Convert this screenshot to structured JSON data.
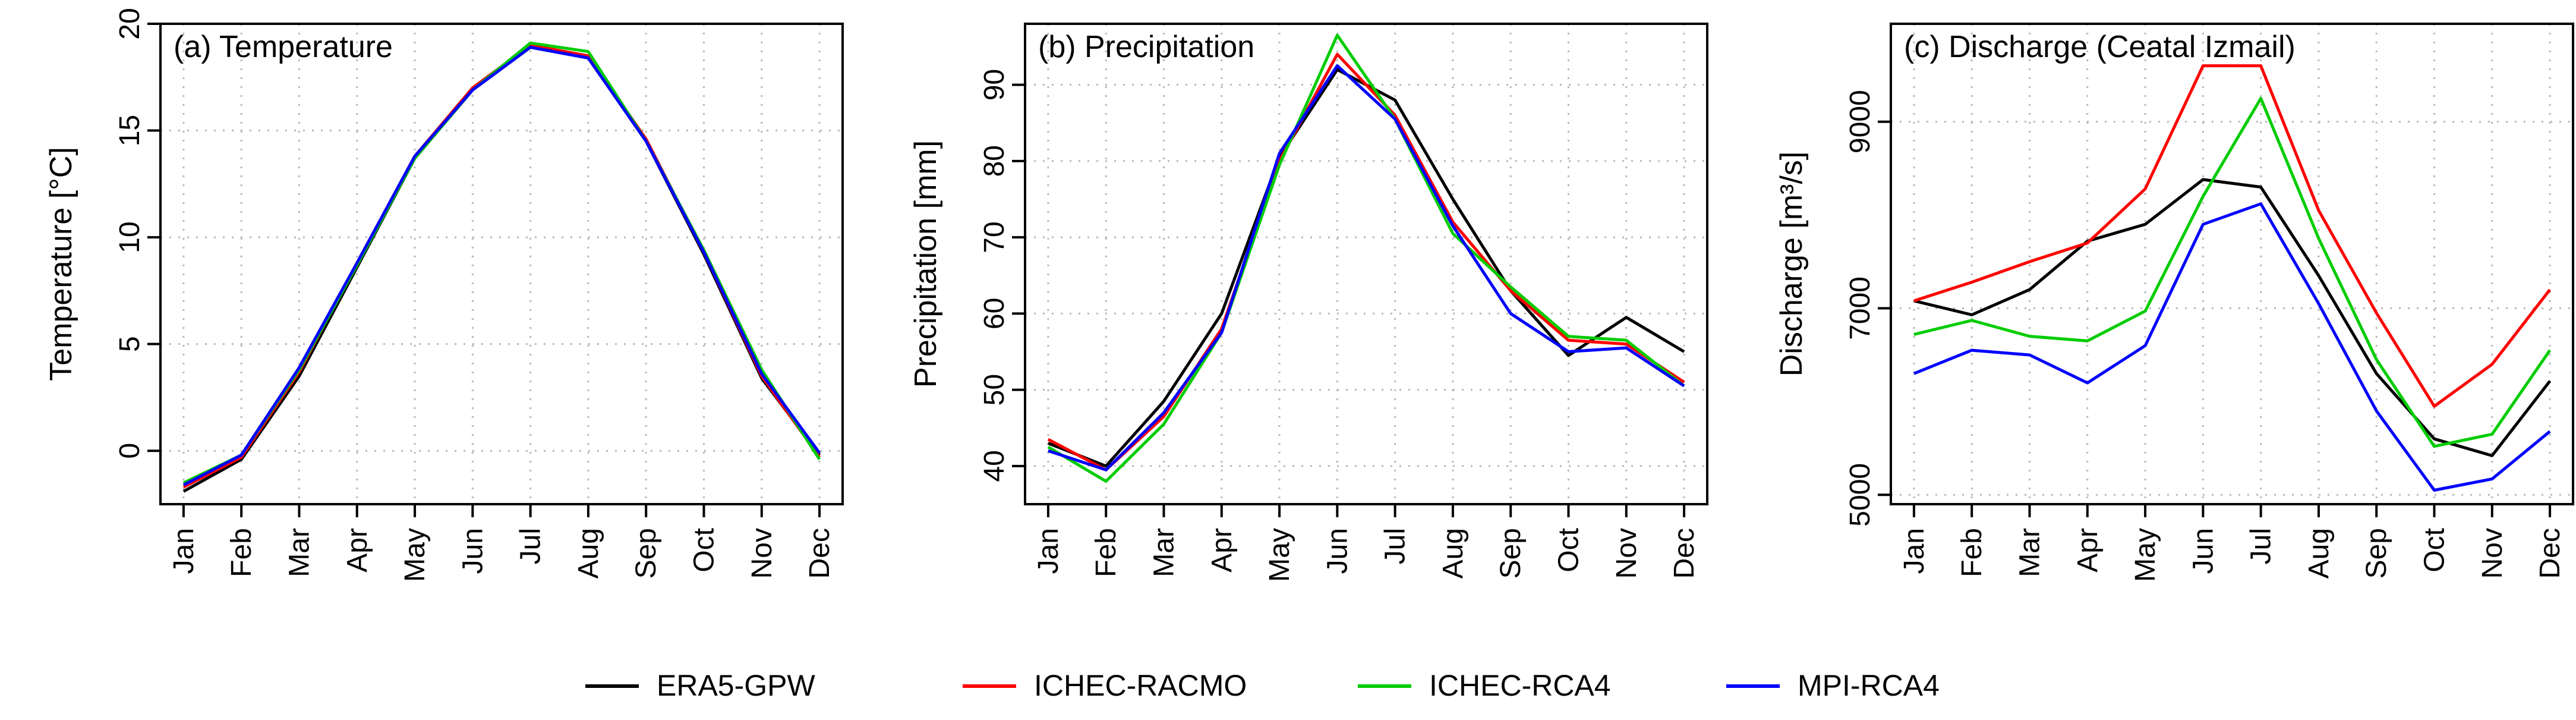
{
  "colors": {
    "ERA5-GPW": "#000000",
    "ICHEC-RACMO": "#ff0000",
    "ICHEC-RCA4": "#00cc00",
    "MPI-RCA4": "#0000ff"
  },
  "legend": [
    "ERA5-GPW",
    "ICHEC-RACMO",
    "ICHEC-RCA4",
    "MPI-RCA4"
  ],
  "chart_data": [
    {
      "type": "line",
      "title": "(a) Temperature",
      "ylabel": "Temperature [°C]",
      "xlabel": "",
      "categories": [
        "Jan",
        "Feb",
        "Mar",
        "Apr",
        "May",
        "Jun",
        "Jul",
        "Aug",
        "Sep",
        "Oct",
        "Nov",
        "Dec"
      ],
      "ylim": [
        -2.5,
        20
      ],
      "yticks": [
        0,
        5,
        10,
        15,
        20
      ],
      "grid": true,
      "series": [
        {
          "name": "ERA5-GPW",
          "values": [
            -1.9,
            -0.4,
            3.5,
            8.6,
            13.7,
            16.9,
            18.9,
            18.4,
            14.5,
            9.2,
            3.4,
            -0.2
          ]
        },
        {
          "name": "ICHEC-RACMO",
          "values": [
            -1.7,
            -0.3,
            3.7,
            8.8,
            13.8,
            17.0,
            19.0,
            18.5,
            14.6,
            9.3,
            3.5,
            -0.3
          ]
        },
        {
          "name": "ICHEC-RCA4",
          "values": [
            -1.5,
            -0.2,
            3.8,
            8.7,
            13.7,
            16.9,
            19.1,
            18.7,
            14.5,
            9.4,
            3.8,
            -0.4
          ]
        },
        {
          "name": "MPI-RCA4",
          "values": [
            -1.6,
            -0.2,
            3.9,
            8.8,
            13.8,
            16.9,
            18.9,
            18.4,
            14.5,
            9.3,
            3.6,
            -0.1
          ]
        }
      ]
    },
    {
      "type": "line",
      "title": "(b) Precipitation",
      "ylabel": "Precipitation [mm]",
      "xlabel": "",
      "categories": [
        "Jan",
        "Feb",
        "Mar",
        "Apr",
        "May",
        "Jun",
        "Jul",
        "Aug",
        "Sep",
        "Oct",
        "Nov",
        "Dec"
      ],
      "ylim": [
        35,
        98
      ],
      "yticks": [
        40,
        50,
        60,
        70,
        80,
        90
      ],
      "grid": true,
      "series": [
        {
          "name": "ERA5-GPW",
          "values": [
            43,
            40,
            48.5,
            60,
            80.5,
            92,
            88,
            75,
            63,
            54.5,
            59.5,
            55
          ]
        },
        {
          "name": "ICHEC-RACMO",
          "values": [
            43.5,
            39.5,
            46.5,
            58,
            80,
            94,
            86,
            72,
            63,
            56.5,
            56,
            51
          ]
        },
        {
          "name": "ICHEC-RCA4",
          "values": [
            42.5,
            38,
            45.5,
            57.5,
            79.5,
            96.5,
            85.5,
            70.5,
            63.5,
            57,
            56.5,
            50.5
          ]
        },
        {
          "name": "MPI-RCA4",
          "values": [
            42,
            39.5,
            47,
            57.5,
            81,
            92.5,
            85.5,
            71.5,
            60,
            55,
            55.5,
            50.5
          ]
        }
      ]
    },
    {
      "type": "line",
      "title": "(c) Discharge (Ceatal Izmail)",
      "ylabel": "Discharge [m³/s]",
      "xlabel": "",
      "categories": [
        "Jan",
        "Feb",
        "Mar",
        "Apr",
        "May",
        "Jun",
        "Jul",
        "Aug",
        "Sep",
        "Oct",
        "Nov",
        "Dec"
      ],
      "ylim": [
        4900,
        10050
      ],
      "yticks": [
        5000,
        7000,
        9000
      ],
      "grid": true,
      "series": [
        {
          "name": "ERA5-GPW",
          "values": [
            7080,
            6930,
            7200,
            7720,
            7900,
            8380,
            8300,
            7350,
            6300,
            5600,
            5420,
            6220
          ]
        },
        {
          "name": "ICHEC-RACMO",
          "values": [
            7080,
            7280,
            7500,
            7700,
            8280,
            9600,
            9600,
            8050,
            6950,
            5950,
            6400,
            7200
          ]
        },
        {
          "name": "ICHEC-RCA4",
          "values": [
            6720,
            6870,
            6700,
            6650,
            6970,
            8200,
            9250,
            7750,
            6450,
            5520,
            5650,
            6550
          ]
        },
        {
          "name": "MPI-RCA4",
          "values": [
            6300,
            6550,
            6500,
            6200,
            6600,
            7900,
            8120,
            7050,
            5900,
            5050,
            5170,
            5680
          ]
        }
      ]
    }
  ]
}
